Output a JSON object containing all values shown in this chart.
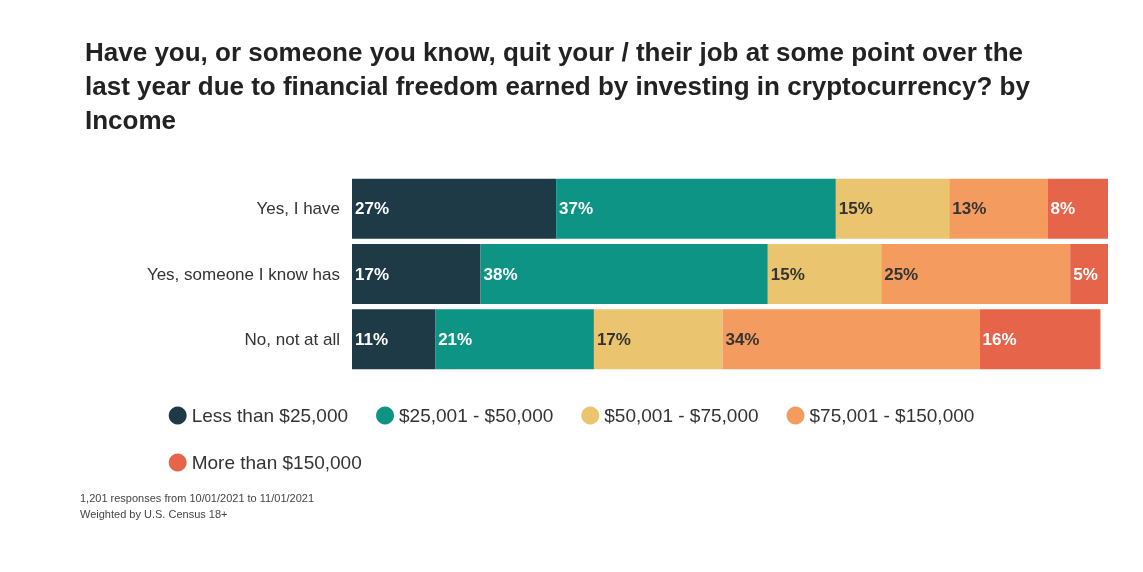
{
  "chart_data": {
    "type": "bar",
    "orientation": "horizontal",
    "stacked": true,
    "title": "Have you, or someone you know, quit your / their job at some point over the last year due to financial freedom earned by investing in cryptocurrency? by Income",
    "categories": [
      "Yes, I have",
      "Yes, someone I know has",
      "No, not at all"
    ],
    "series": [
      {
        "name": "Less than $25,000",
        "color": "#1e3a47",
        "values": [
          27,
          17,
          11
        ],
        "value_labels": [
          "27%",
          "17%",
          "11%"
        ]
      },
      {
        "name": "$25,001 - $50,000",
        "color": "#0e9484",
        "values": [
          37,
          38,
          21
        ],
        "value_labels": [
          "37%",
          "38%",
          "21%"
        ]
      },
      {
        "name": "$50,001 - $75,000",
        "color": "#eac46e",
        "values": [
          15,
          15,
          17
        ],
        "value_labels": [
          "15%",
          "15%",
          "17%"
        ]
      },
      {
        "name": "$75,001 - $150,000",
        "color": "#f49c60",
        "values": [
          13,
          25,
          34
        ],
        "value_labels": [
          "13%",
          "25%",
          "34%"
        ]
      },
      {
        "name": "More than $150,000",
        "color": "#e5644a",
        "values": [
          8,
          5,
          16
        ],
        "value_labels": [
          "8%",
          "5%",
          "16%"
        ]
      }
    ],
    "legend": "bottom",
    "tick_labels": "y",
    "annotations": [
      "1,201 responses from 10/01/2021 to 11/01/2021",
      "Weighted by U.S. Census 18+"
    ]
  }
}
